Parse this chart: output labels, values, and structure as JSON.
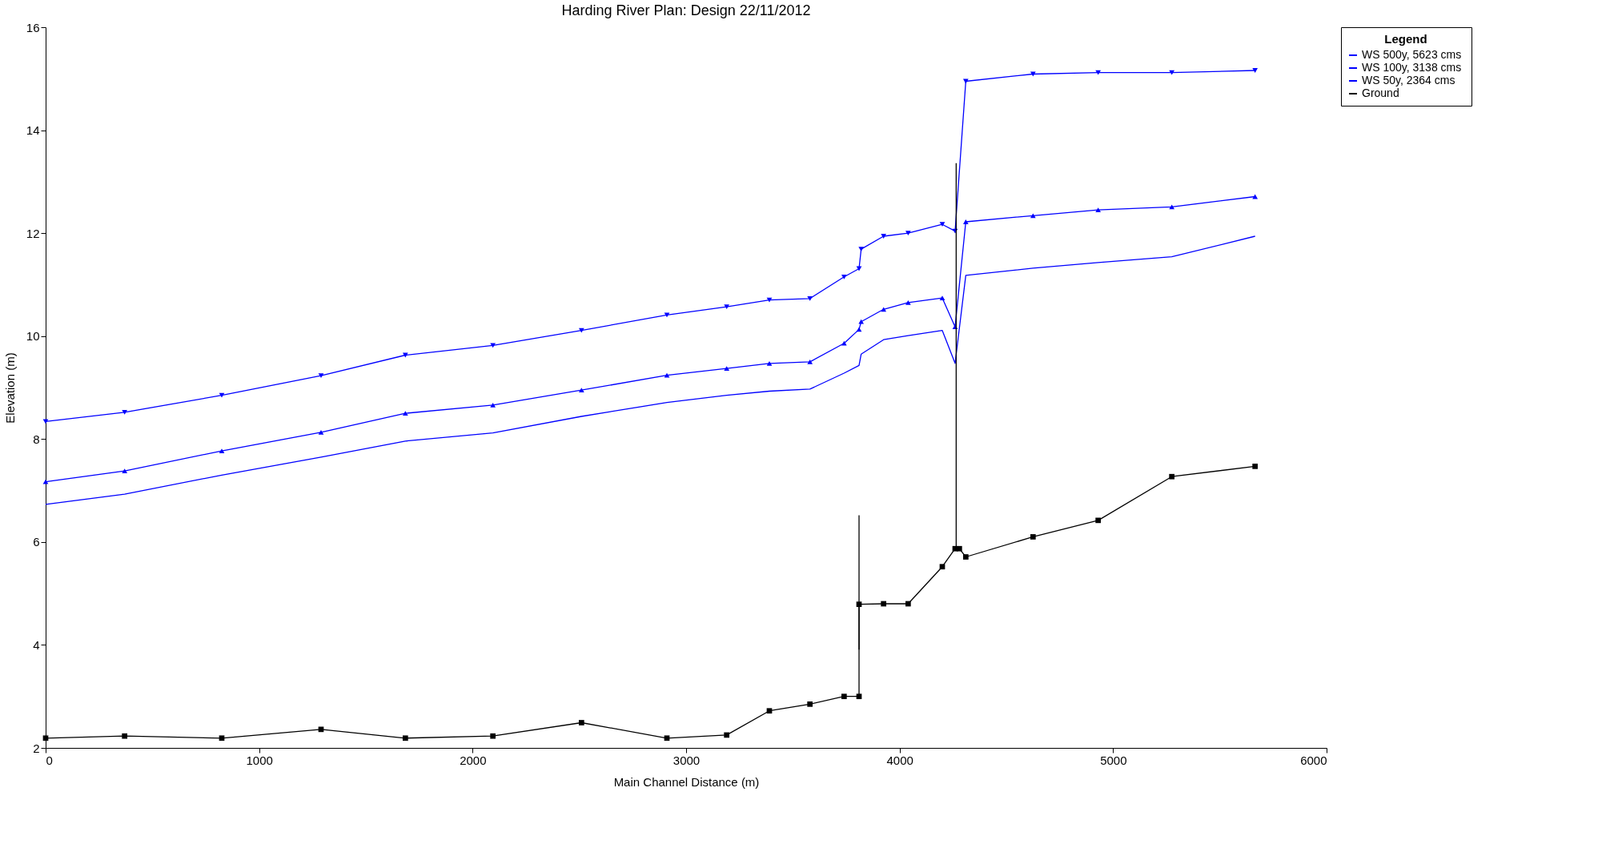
{
  "chart_data": {
    "type": "line",
    "title": "Harding River      Plan: Design      22/11/2012",
    "xlabel": "Main Channel Distance (m)",
    "ylabel": "Elevation (m)",
    "legend_title": "Legend",
    "legend": "top right",
    "grid": false,
    "xlim": [
      0,
      6000
    ],
    "xticks": [
      0,
      1000,
      2000,
      3000,
      4000,
      5000,
      6000
    ],
    "ylim": [
      2,
      16
    ],
    "yticks": [
      2,
      4,
      6,
      8,
      10,
      12,
      14,
      16
    ],
    "series": [
      {
        "name": "WS  500y, 5623 cms",
        "color": "#0000ff",
        "marker": "triangle-down",
        "x": [
          0,
          370,
          825,
          1290,
          1685,
          2095,
          2510,
          2910,
          3190,
          3390,
          3580,
          3740,
          3810,
          3820,
          3925,
          4040,
          4200,
          4260,
          4310,
          4625,
          4930,
          5275,
          5665
        ],
        "values": [
          8.34,
          8.52,
          8.85,
          9.23,
          9.63,
          9.82,
          10.11,
          10.41,
          10.57,
          10.7,
          10.73,
          11.15,
          11.31,
          11.69,
          11.94,
          12.0,
          12.17,
          12.04,
          14.95,
          15.09,
          15.12,
          15.12,
          15.16
        ]
      },
      {
        "name": "WS  100y, 3138 cms",
        "color": "#0000ff",
        "marker": "triangle",
        "x": [
          0,
          370,
          825,
          1290,
          1685,
          2095,
          2510,
          2910,
          3190,
          3390,
          3580,
          3740,
          3810,
          3820,
          3925,
          4040,
          4200,
          4260,
          4310,
          4625,
          4930,
          5275,
          5665
        ],
        "values": [
          7.17,
          7.38,
          7.77,
          8.13,
          8.5,
          8.66,
          8.95,
          9.24,
          9.37,
          9.47,
          9.5,
          9.86,
          10.13,
          10.28,
          10.52,
          10.65,
          10.74,
          10.18,
          12.22,
          12.34,
          12.45,
          12.51,
          12.71
        ]
      },
      {
        "name": "WS  50y, 2364 cms",
        "color": "#0000ff",
        "marker": "none",
        "x": [
          0,
          370,
          825,
          1290,
          1685,
          2095,
          2510,
          2910,
          3190,
          3390,
          3580,
          3740,
          3810,
          3820,
          3925,
          4040,
          4200,
          4260,
          4310,
          4625,
          4930,
          5275,
          5665
        ],
        "values": [
          6.73,
          6.93,
          7.3,
          7.65,
          7.96,
          8.12,
          8.44,
          8.71,
          8.85,
          8.93,
          8.97,
          9.28,
          9.43,
          9.65,
          9.93,
          10.01,
          10.11,
          9.47,
          11.18,
          11.32,
          11.43,
          11.54,
          11.94
        ]
      },
      {
        "name": "Ground",
        "color": "#000000",
        "marker": "square",
        "x": [
          0,
          370,
          825,
          1290,
          1685,
          2095,
          2510,
          2910,
          3190,
          3390,
          3580,
          3740,
          3810,
          3810,
          3925,
          4040,
          4200,
          4260,
          4280,
          4310,
          4625,
          4930,
          5275,
          5665
        ],
        "values": [
          2.19,
          2.23,
          2.19,
          2.36,
          2.19,
          2.23,
          2.49,
          2.19,
          2.25,
          2.72,
          2.85,
          3.0,
          3.0,
          4.79,
          4.8,
          4.8,
          5.52,
          5.87,
          5.87,
          5.71,
          6.1,
          6.42,
          7.27,
          7.47
        ]
      },
      {
        "color": "#000000",
        "marker": "none",
        "x": [
          3810,
          3810
        ],
        "values": [
          3.91,
          6.52
        ]
      },
      {
        "color": "#000000",
        "marker": "none",
        "x": [
          4265,
          4265
        ],
        "values": [
          5.87,
          13.36
        ]
      }
    ]
  }
}
